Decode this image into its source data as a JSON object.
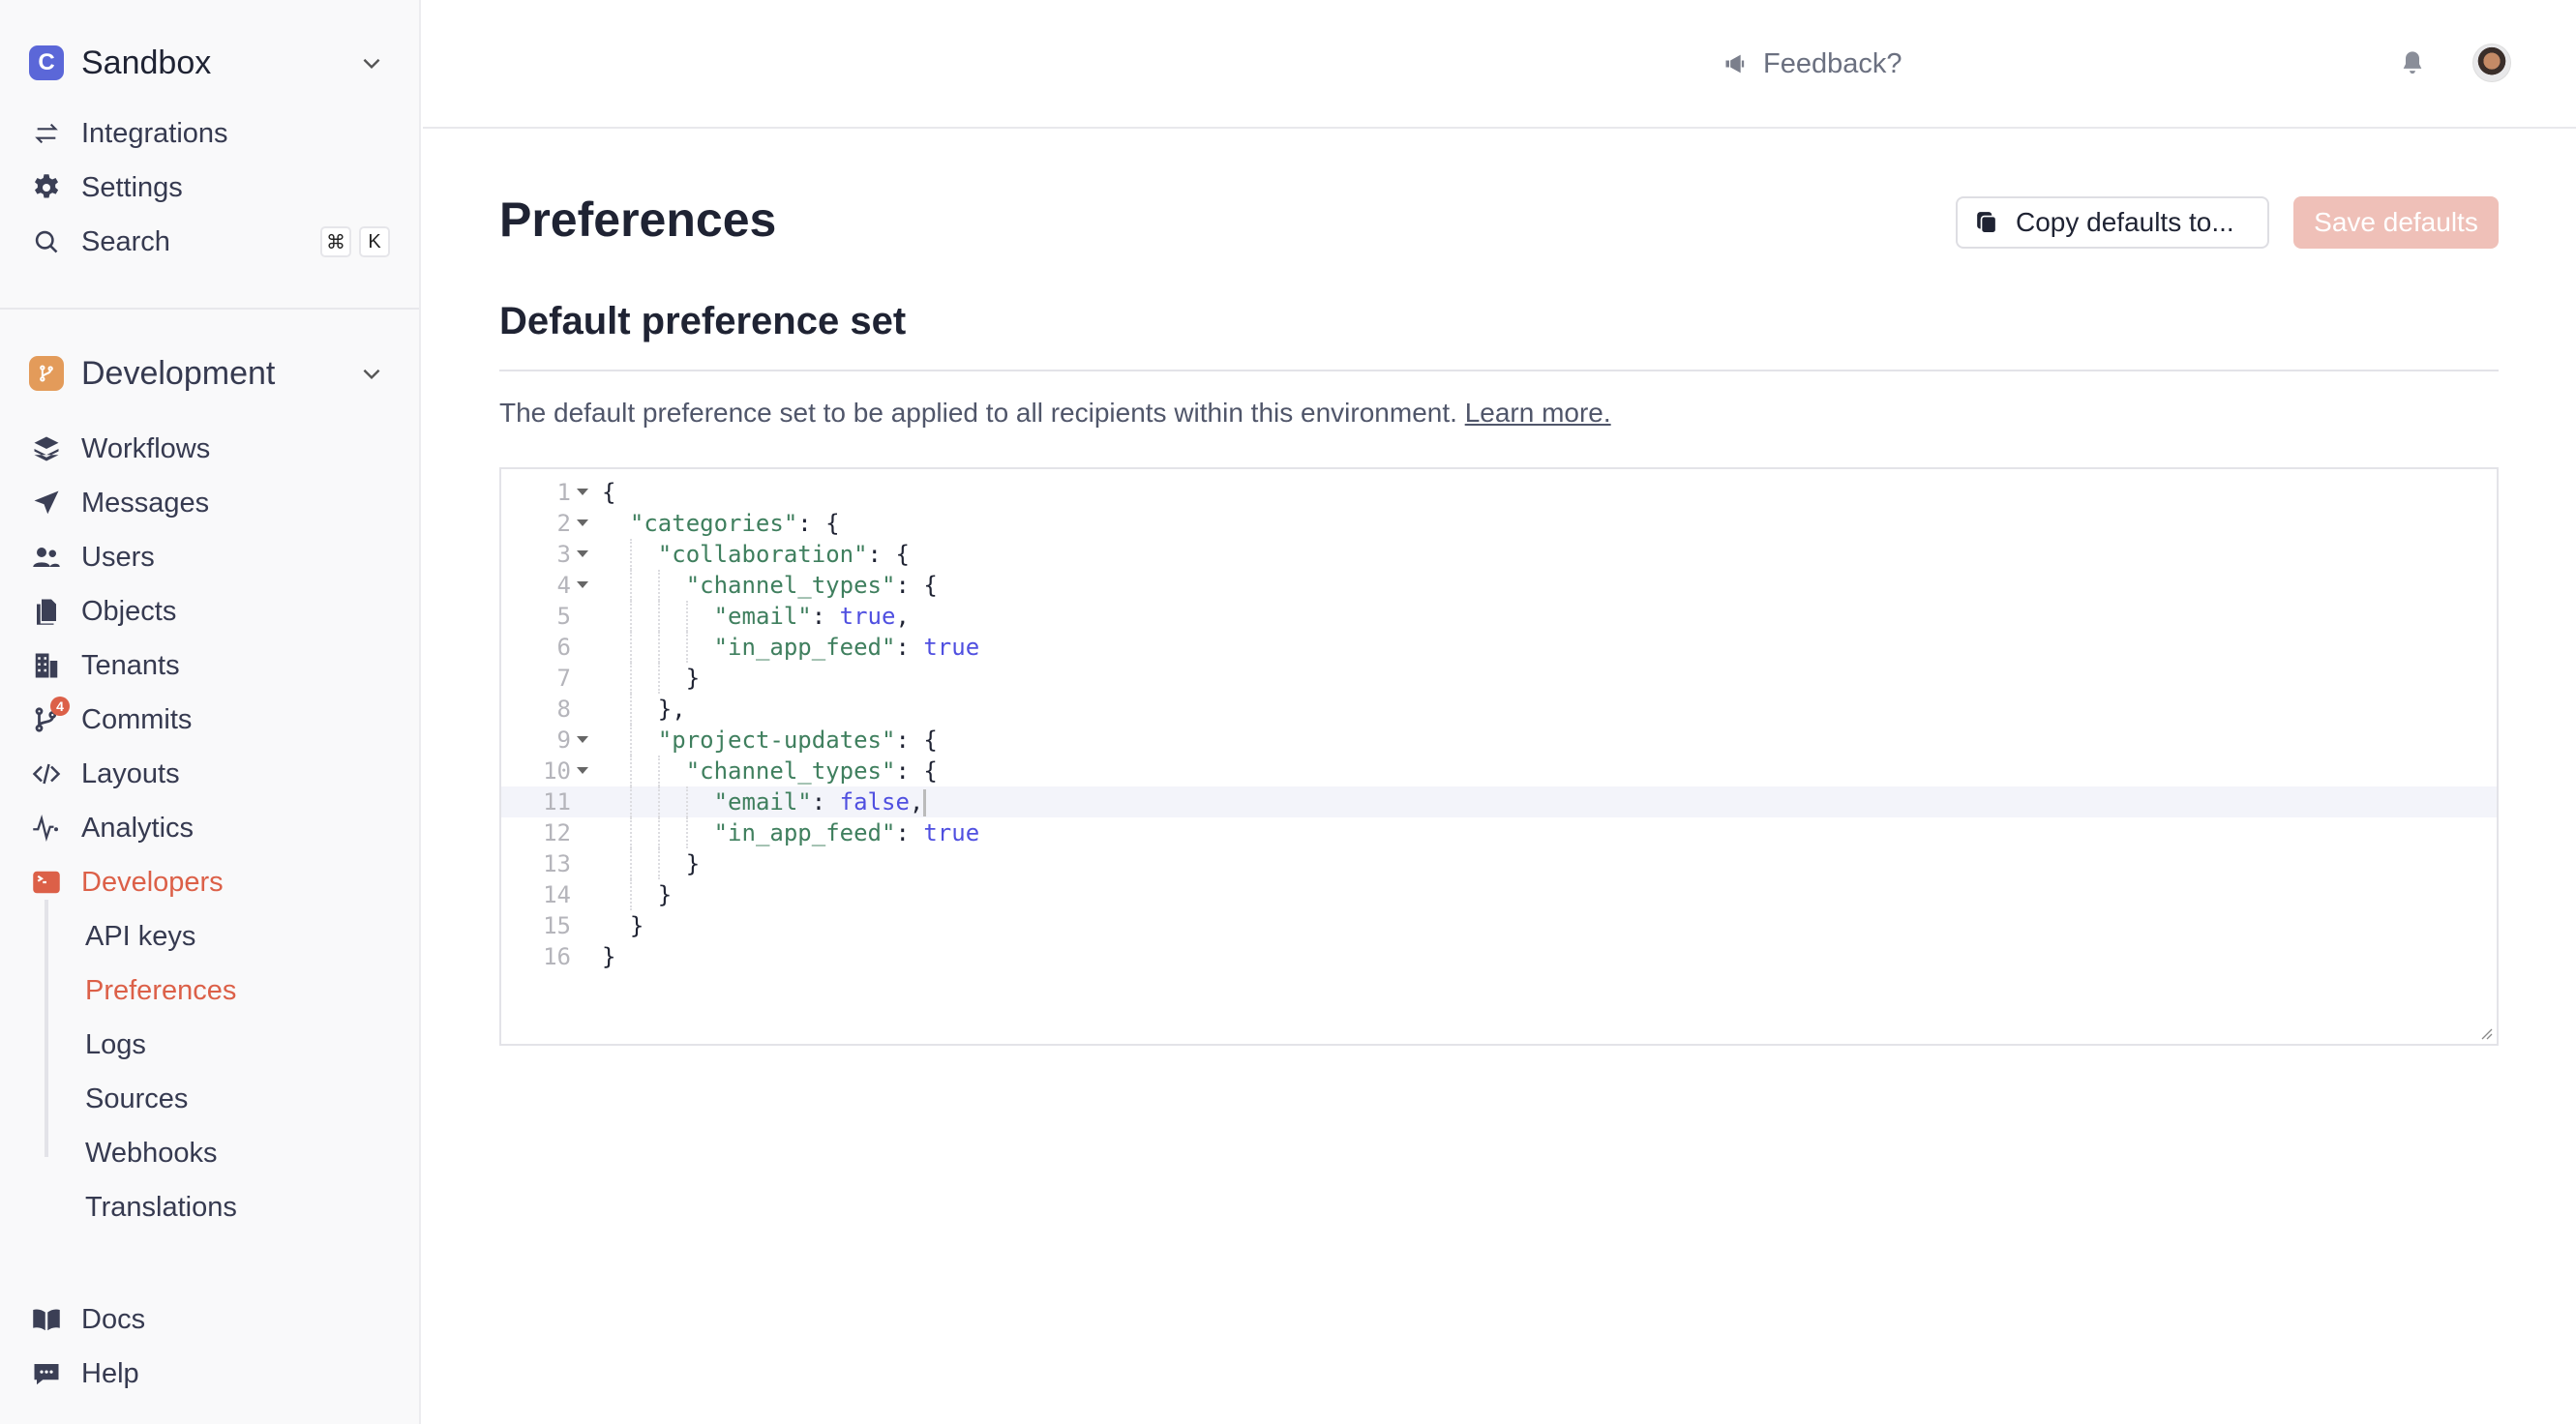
{
  "sidebar": {
    "environment": {
      "name": "Sandbox",
      "logo_letter": "C",
      "logo_color": "#5b67d8"
    },
    "top_items": [
      {
        "label": "Integrations",
        "icon": "arrows-exchange-icon"
      },
      {
        "label": "Settings",
        "icon": "gear-icon"
      },
      {
        "label": "Search",
        "icon": "search-icon",
        "shortcut": [
          "⌘",
          "K"
        ]
      }
    ],
    "branch": {
      "name": "Development",
      "color": "#e39b5a"
    },
    "items": [
      {
        "label": "Workflows",
        "icon": "layers-icon"
      },
      {
        "label": "Messages",
        "icon": "paper-plane-icon"
      },
      {
        "label": "Users",
        "icon": "users-icon"
      },
      {
        "label": "Objects",
        "icon": "objects-icon"
      },
      {
        "label": "Tenants",
        "icon": "building-icon"
      },
      {
        "label": "Commits",
        "icon": "git-commit-icon",
        "badge": "4"
      },
      {
        "label": "Layouts",
        "icon": "code-icon"
      },
      {
        "label": "Analytics",
        "icon": "activity-icon"
      },
      {
        "label": "Developers",
        "icon": "terminal-icon",
        "active": true
      }
    ],
    "sub_items": [
      {
        "label": "API keys"
      },
      {
        "label": "Preferences",
        "active": true
      },
      {
        "label": "Logs"
      },
      {
        "label": "Sources"
      },
      {
        "label": "Webhooks"
      },
      {
        "label": "Translations"
      }
    ],
    "bottom_items": [
      {
        "label": "Docs",
        "icon": "book-icon"
      },
      {
        "label": "Help",
        "icon": "chat-icon"
      }
    ],
    "accent": "#dc6048"
  },
  "header": {
    "feedback": "Feedback?"
  },
  "page": {
    "title": "Preferences",
    "copy_button": "Copy defaults to...",
    "save_button": "Save defaults",
    "section_title": "Default preference set",
    "description": "The default preference set to be applied to all recipients within this environment.",
    "learn_more": "Learn more."
  },
  "editor": {
    "active_line": 11,
    "lines": [
      {
        "n": "1",
        "fold": true,
        "indent": 0,
        "tokens": [
          [
            "{",
            "punct"
          ]
        ]
      },
      {
        "n": "2",
        "fold": true,
        "indent": 1,
        "tokens": [
          [
            "\"categories\"",
            "string"
          ],
          [
            ": {",
            "punct"
          ]
        ]
      },
      {
        "n": "3",
        "fold": true,
        "indent": 2,
        "tokens": [
          [
            "\"collaboration\"",
            "string"
          ],
          [
            ": {",
            "punct"
          ]
        ]
      },
      {
        "n": "4",
        "fold": true,
        "indent": 3,
        "tokens": [
          [
            "\"channel_types\"",
            "string"
          ],
          [
            ": {",
            "punct"
          ]
        ]
      },
      {
        "n": "5",
        "fold": false,
        "indent": 4,
        "tokens": [
          [
            "\"email\"",
            "string"
          ],
          [
            ": ",
            "punct"
          ],
          [
            "true",
            "bool"
          ],
          [
            ",",
            "punct"
          ]
        ]
      },
      {
        "n": "6",
        "fold": false,
        "indent": 4,
        "tokens": [
          [
            "\"in_app_feed\"",
            "string"
          ],
          [
            ": ",
            "punct"
          ],
          [
            "true",
            "bool"
          ]
        ]
      },
      {
        "n": "7",
        "fold": false,
        "indent": 3,
        "tokens": [
          [
            "}",
            "punct"
          ]
        ]
      },
      {
        "n": "8",
        "fold": false,
        "indent": 2,
        "tokens": [
          [
            "},",
            "punct"
          ]
        ]
      },
      {
        "n": "9",
        "fold": true,
        "indent": 2,
        "tokens": [
          [
            "\"project-updates\"",
            "string"
          ],
          [
            ": {",
            "punct"
          ]
        ]
      },
      {
        "n": "10",
        "fold": true,
        "indent": 3,
        "tokens": [
          [
            "\"channel_types\"",
            "string"
          ],
          [
            ": {",
            "punct"
          ]
        ]
      },
      {
        "n": "11",
        "fold": false,
        "indent": 4,
        "tokens": [
          [
            "\"email\"",
            "string"
          ],
          [
            ": ",
            "punct"
          ],
          [
            "false",
            "bool"
          ],
          [
            ",",
            "punct"
          ]
        ]
      },
      {
        "n": "12",
        "fold": false,
        "indent": 4,
        "tokens": [
          [
            "\"in_app_feed\"",
            "string"
          ],
          [
            ": ",
            "punct"
          ],
          [
            "true",
            "bool"
          ]
        ]
      },
      {
        "n": "13",
        "fold": false,
        "indent": 3,
        "tokens": [
          [
            "}",
            "punct"
          ]
        ]
      },
      {
        "n": "14",
        "fold": false,
        "indent": 2,
        "tokens": [
          [
            "}",
            "punct"
          ]
        ]
      },
      {
        "n": "15",
        "fold": false,
        "indent": 1,
        "tokens": [
          [
            "}",
            "punct"
          ]
        ]
      },
      {
        "n": "16",
        "fold": false,
        "indent": 0,
        "tokens": [
          [
            "}",
            "punct"
          ]
        ]
      }
    ]
  }
}
